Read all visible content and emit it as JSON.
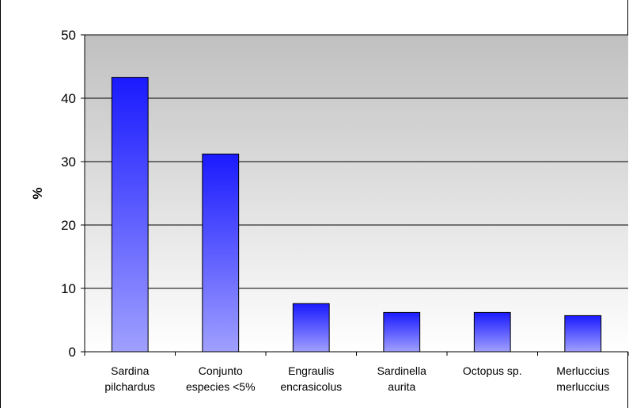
{
  "chart_data": {
    "type": "bar",
    "title": "",
    "xlabel": "",
    "ylabel": "%",
    "ylim": [
      0,
      50
    ],
    "yticks": [
      0,
      10,
      20,
      30,
      40,
      50
    ],
    "grid": true,
    "categories": [
      [
        "Sardina",
        "pilchardus"
      ],
      [
        "Conjunto",
        "especies <5%"
      ],
      [
        "Engraulis",
        "encrasicolus"
      ],
      [
        "Sardinella",
        "aurita"
      ],
      [
        "Octopus sp."
      ],
      [
        "Merluccius",
        "merluccius"
      ]
    ],
    "values": [
      43.3,
      31.2,
      7.6,
      6.2,
      6.2,
      5.7
    ],
    "colors": {
      "bar_top": "#1a1aff",
      "bar_bottom": "#a0a0ff",
      "plot_top": "#c0c0c0",
      "plot_bottom": "#ffffff"
    }
  }
}
